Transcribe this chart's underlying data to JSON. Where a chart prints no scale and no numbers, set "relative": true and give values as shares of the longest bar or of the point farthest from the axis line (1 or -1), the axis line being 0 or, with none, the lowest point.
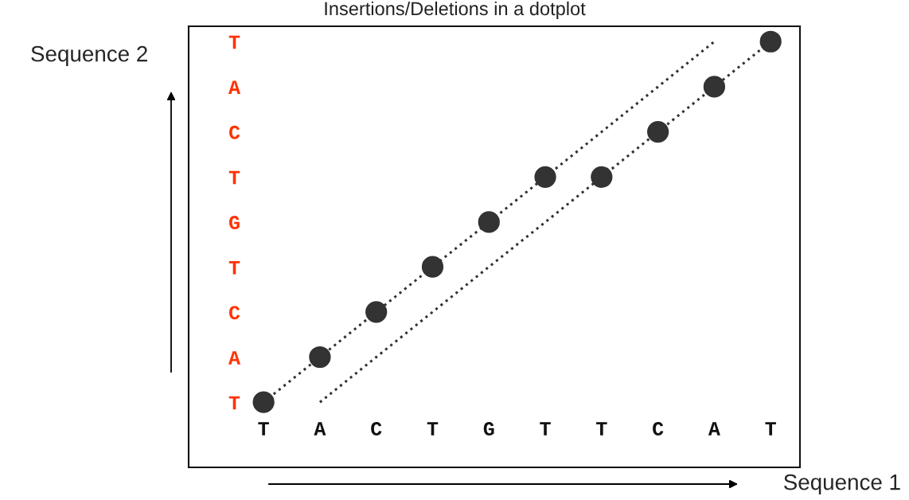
{
  "chart_data": {
    "type": "scatter",
    "title": "Insertions/Deletions in a dotplot",
    "xlabel": "Sequence 1",
    "ylabel": "Sequence 2",
    "categories": [
      "T",
      "A",
      "C",
      "T",
      "G",
      "T",
      "T",
      "C",
      "A",
      "T"
    ],
    "y_categories": [
      "T",
      "A",
      "C",
      "T",
      "G",
      "T",
      "C",
      "A",
      "T"
    ],
    "relative": true,
    "grid": false,
    "marker": "circle",
    "series": [
      {
        "color": "#333333",
        "values": [
          0.153,
          0.259,
          0.365,
          0.471,
          0.576,
          0.682,
          0.682,
          0.788,
          0.894,
          1
        ]
      },
      {
        "type": "line",
        "color": "#333333",
        "line_style": "dotted",
        "marker": "none",
        "values": [
          0.153,
          0.259,
          0.365,
          0.471,
          0.576,
          0.682,
          0.788,
          0.894,
          1,
          null
        ]
      },
      {
        "type": "line",
        "color": "#333333",
        "line_style": "dotted",
        "marker": "none",
        "values": [
          null,
          0.153,
          0.259,
          0.365,
          0.471,
          0.576,
          0.682,
          0.788,
          0.894,
          1
        ]
      }
    ]
  }
}
